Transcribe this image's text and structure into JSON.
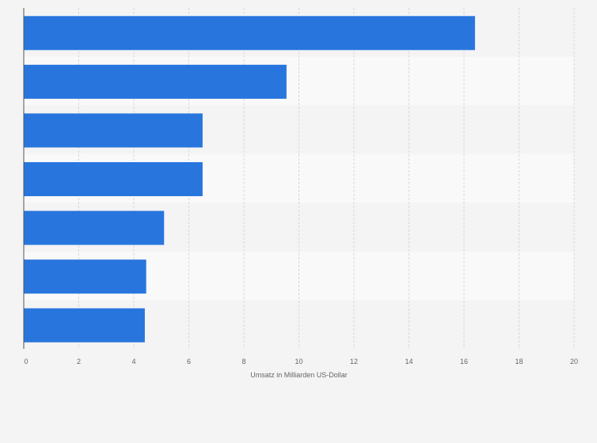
{
  "chart_data": {
    "type": "bar",
    "orientation": "horizontal",
    "categories": [
      "",
      "",
      "",
      "",
      "",
      "",
      ""
    ],
    "values": [
      16.4,
      9.55,
      6.5,
      6.5,
      5.1,
      4.45,
      4.4
    ],
    "title": "",
    "xlabel": "Umsatz in Milliarden US-Dollar",
    "ylabel": "",
    "xlim": [
      0,
      20
    ],
    "xticks": [
      0,
      2,
      4,
      6,
      8,
      10,
      12,
      14,
      16,
      18,
      20
    ],
    "tick_labels": [
      "0",
      "2",
      "4",
      "6",
      "8",
      "10",
      "12",
      "14",
      "16",
      "18",
      "20"
    ],
    "grid": "vertical dashed",
    "legend": "none",
    "colors": {
      "bar": "#2876dd",
      "band_light": "#f9f9fa",
      "band_dark": "#f4f4f5",
      "background": "#f4f4f5",
      "grid": "#d8d8dc",
      "axis": "#555555",
      "text": "#666666"
    }
  }
}
